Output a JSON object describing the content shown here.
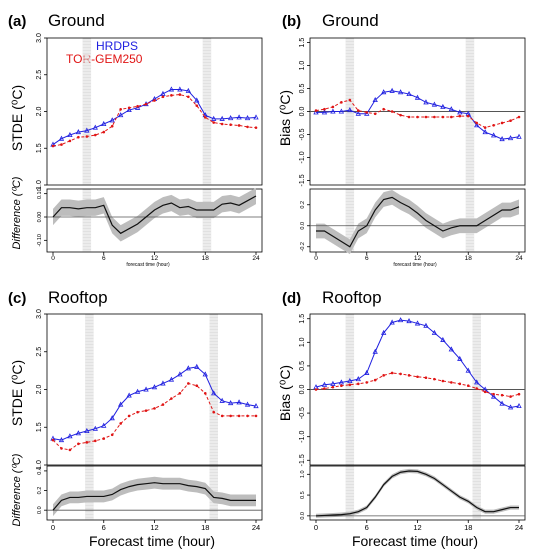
{
  "colors": {
    "hrdps": "#2020e0",
    "tor": "#e01515",
    "band": "#bdbdbd",
    "hatch": "#c8c8c8",
    "axis": "#000000",
    "zero": "#555555"
  },
  "chart_data": [
    {
      "id": "a",
      "type": "line",
      "panel_label": "(a)",
      "title": "Ground",
      "ylabel": "STDE (⁰C)",
      "ylim": [
        1.0,
        3.0
      ],
      "yticks": [
        "1.0",
        "1.5",
        "2.0",
        "2.5",
        "3.0"
      ],
      "legend": [
        "HRDPS",
        "TOR-GEM250"
      ],
      "x": [
        0,
        1,
        2,
        3,
        4,
        5,
        6,
        7,
        8,
        9,
        10,
        11,
        12,
        13,
        14,
        15,
        16,
        17,
        18,
        19,
        20,
        21,
        22,
        23,
        24
      ],
      "series": [
        {
          "name": "HRDPS",
          "color": "#2020e0",
          "values": [
            1.55,
            1.63,
            1.68,
            1.72,
            1.74,
            1.78,
            1.83,
            1.88,
            1.95,
            2.02,
            2.05,
            2.1,
            2.17,
            2.24,
            2.3,
            2.3,
            2.28,
            2.15,
            1.95,
            1.9,
            1.9,
            1.91,
            1.92,
            1.91,
            1.92
          ]
        },
        {
          "name": "TOR-GEM250",
          "color": "#e01515",
          "values": [
            1.53,
            1.55,
            1.6,
            1.65,
            1.66,
            1.68,
            1.72,
            1.8,
            2.03,
            2.05,
            2.07,
            2.1,
            2.15,
            2.2,
            2.22,
            2.23,
            2.2,
            2.08,
            1.92,
            1.85,
            1.83,
            1.82,
            1.81,
            1.79,
            1.78
          ]
        }
      ],
      "hatch_x": [
        [
          3.5,
          4.5
        ],
        [
          17.7,
          18.7
        ]
      ],
      "zero_line": false,
      "sub": {
        "ylabel": "Difference (⁰C)",
        "xlabel": "forecast time (hour)",
        "ylim": [
          -0.15,
          0.12
        ],
        "yticks": [
          "-0.10",
          "0.00",
          "0.10"
        ],
        "ytick_values": [
          -0.1,
          0.0,
          0.1
        ],
        "zero": 0.0,
        "mean": [
          0.0,
          0.04,
          0.04,
          0.035,
          0.04,
          0.04,
          0.05,
          -0.035,
          -0.07,
          -0.05,
          -0.03,
          0.0,
          0.03,
          0.05,
          0.06,
          0.04,
          0.045,
          0.03,
          0.03,
          0.03,
          0.055,
          0.06,
          0.05,
          0.07,
          0.09
        ],
        "half_width": 0.035
      }
    },
    {
      "id": "b",
      "type": "line",
      "panel_label": "(b)",
      "title": "Ground",
      "ylabel": "Bias (⁰C)",
      "ylim": [
        -1.6,
        1.6
      ],
      "yticks": [
        "-1.5",
        "-1.0",
        "-0.5",
        "0.0",
        "0.5",
        "1.0",
        "1.5"
      ],
      "zero_line": true,
      "x": [
        0,
        1,
        2,
        3,
        4,
        5,
        6,
        7,
        8,
        9,
        10,
        11,
        12,
        13,
        14,
        15,
        16,
        17,
        18,
        19,
        20,
        21,
        22,
        23,
        24
      ],
      "series": [
        {
          "name": "HRDPS",
          "color": "#2020e0",
          "values": [
            -0.02,
            -0.02,
            0.0,
            0.0,
            0.03,
            -0.05,
            -0.05,
            0.25,
            0.42,
            0.45,
            0.42,
            0.38,
            0.3,
            0.2,
            0.15,
            0.1,
            0.05,
            -0.02,
            -0.05,
            -0.3,
            -0.45,
            -0.52,
            -0.6,
            -0.58,
            -0.55
          ]
        },
        {
          "name": "TOR-GEM250",
          "color": "#e01515",
          "values": [
            0.02,
            0.05,
            0.1,
            0.2,
            0.25,
            0.02,
            -0.02,
            -0.05,
            0.05,
            0.0,
            -0.08,
            -0.12,
            -0.12,
            -0.12,
            -0.12,
            -0.12,
            -0.12,
            -0.1,
            -0.1,
            -0.25,
            -0.35,
            -0.3,
            -0.25,
            -0.2,
            -0.12
          ]
        }
      ],
      "hatch_x": [
        [
          3.5,
          4.5
        ],
        [
          17.7,
          18.7
        ]
      ],
      "sub": {
        "ylabel": "",
        "xlabel": "forecast time (hour)",
        "ylim": [
          -0.25,
          0.35
        ],
        "yticks": [
          "-0.2",
          "0.0",
          "0.2"
        ],
        "ytick_values": [
          -0.2,
          0.0,
          0.2
        ],
        "zero": 0.0,
        "mean": [
          -0.05,
          -0.05,
          -0.1,
          -0.15,
          -0.2,
          -0.05,
          0.0,
          0.15,
          0.25,
          0.27,
          0.22,
          0.18,
          0.12,
          0.05,
          0.0,
          -0.05,
          -0.02,
          0.0,
          0.0,
          0.0,
          0.05,
          0.1,
          0.15,
          0.15,
          0.18
        ],
        "half_width": 0.07
      }
    },
    {
      "id": "c",
      "type": "line",
      "panel_label": "(c)",
      "title": "Rooftop",
      "ylabel": "STDE (⁰C)",
      "ylim": [
        1.0,
        3.0
      ],
      "yticks": [
        "1.0",
        "1.5",
        "2.0",
        "2.5",
        "3.0"
      ],
      "zero_line": false,
      "x": [
        0,
        1,
        2,
        3,
        4,
        5,
        6,
        7,
        8,
        9,
        10,
        11,
        12,
        13,
        14,
        15,
        16,
        17,
        18,
        19,
        20,
        21,
        22,
        23,
        24
      ],
      "series": [
        {
          "name": "HRDPS",
          "color": "#2020e0",
          "values": [
            1.35,
            1.33,
            1.38,
            1.42,
            1.45,
            1.48,
            1.52,
            1.62,
            1.8,
            1.92,
            1.97,
            2.0,
            2.03,
            2.08,
            2.13,
            2.2,
            2.28,
            2.3,
            2.2,
            1.95,
            1.85,
            1.82,
            1.83,
            1.8,
            1.78
          ]
        },
        {
          "name": "TOR-GEM250",
          "color": "#e01515",
          "values": [
            1.33,
            1.22,
            1.2,
            1.28,
            1.3,
            1.32,
            1.35,
            1.4,
            1.55,
            1.65,
            1.7,
            1.72,
            1.75,
            1.8,
            1.88,
            1.95,
            2.08,
            2.05,
            1.95,
            1.7,
            1.65,
            1.65,
            1.65,
            1.65,
            1.65
          ]
        }
      ],
      "hatch_x": [
        [
          3.8,
          4.8
        ],
        [
          18.5,
          19.5
        ]
      ],
      "sub": {
        "ylabel": "Difference (⁰C)",
        "xlabel": "Forecast time (hour)",
        "ylim": [
          -0.1,
          0.45
        ],
        "yticks": [
          "0.0",
          "0.2",
          "0.4"
        ],
        "ytick_values": [
          0.0,
          0.2,
          0.4
        ],
        "zero": 0.0,
        "mean": [
          0.0,
          0.1,
          0.13,
          0.13,
          0.14,
          0.14,
          0.14,
          0.16,
          0.21,
          0.24,
          0.26,
          0.27,
          0.28,
          0.27,
          0.27,
          0.27,
          0.25,
          0.24,
          0.22,
          0.13,
          0.12,
          0.1,
          0.1,
          0.1,
          0.1
        ],
        "half_width": 0.06
      }
    },
    {
      "id": "d",
      "type": "line",
      "panel_label": "(d)",
      "title": "Rooftop",
      "ylabel": "Bias (⁰C)",
      "ylim": [
        -1.6,
        1.6
      ],
      "yticks": [
        "-1.5",
        "-1.0",
        "-0.5",
        "0.0",
        "0.5",
        "1.0",
        "1.5"
      ],
      "zero_line": true,
      "x": [
        0,
        1,
        2,
        3,
        4,
        5,
        6,
        7,
        8,
        9,
        10,
        11,
        12,
        13,
        14,
        15,
        16,
        17,
        18,
        19,
        20,
        21,
        22,
        23,
        24
      ],
      "series": [
        {
          "name": "HRDPS",
          "color": "#2020e0",
          "values": [
            0.05,
            0.1,
            0.12,
            0.15,
            0.18,
            0.22,
            0.35,
            0.8,
            1.2,
            1.42,
            1.47,
            1.45,
            1.4,
            1.35,
            1.2,
            1.05,
            0.85,
            0.65,
            0.4,
            0.15,
            0.0,
            -0.15,
            -0.3,
            -0.38,
            -0.35
          ]
        },
        {
          "name": "TOR-GEM250",
          "color": "#e01515",
          "values": [
            0.0,
            0.02,
            0.05,
            0.08,
            0.1,
            0.12,
            0.15,
            0.2,
            0.3,
            0.35,
            0.33,
            0.3,
            0.27,
            0.25,
            0.22,
            0.18,
            0.15,
            0.12,
            0.08,
            0.02,
            -0.05,
            -0.1,
            -0.12,
            -0.15,
            -0.1
          ]
        }
      ],
      "hatch_x": [
        [
          3.5,
          4.5
        ],
        [
          18.5,
          19.5
        ]
      ],
      "sub": {
        "ylabel": "",
        "xlabel": "Forecast time (hour)",
        "ylim": [
          -0.1,
          1.2
        ],
        "yticks": [
          "0.0",
          "0.5",
          "1.0"
        ],
        "ytick_values": [
          0.0,
          0.5,
          1.0
        ],
        "zero": 0.0,
        "mean": [
          0.0,
          0.01,
          0.02,
          0.03,
          0.05,
          0.1,
          0.2,
          0.45,
          0.75,
          0.95,
          1.05,
          1.08,
          1.07,
          1.0,
          0.9,
          0.75,
          0.6,
          0.45,
          0.35,
          0.2,
          0.1,
          0.1,
          0.15,
          0.2,
          0.2
        ],
        "half_width": 0.05
      }
    }
  ],
  "x_ticks": [
    "0",
    "6",
    "12",
    "18",
    "24"
  ]
}
